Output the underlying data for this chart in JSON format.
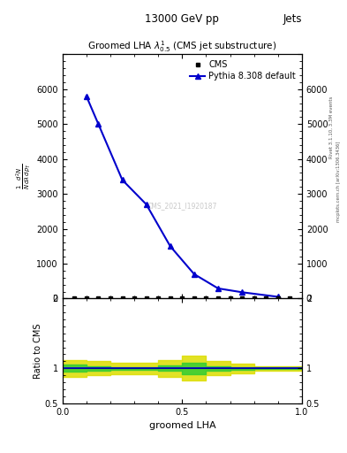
{
  "title": "13000 GeV pp",
  "jets_label": "Jets",
  "plot_title": "Groomed LHA $\\lambda^{1}_{0.5}$ (CMS jet substructure)",
  "xlabel": "groomed LHA",
  "ylabel_main": "$\\frac{1}{N}\\frac{d^{2}N}{d\\lambda\\,dp_{T}}$",
  "ylabel_ratio": "Ratio to CMS",
  "right_label_top": "Rivet 3.1.10, 3.3M events",
  "right_label_bot": "mcplots.cern.ch [arXiv:1306.3436]",
  "watermark": "CMS_2021_I1920187",
  "cms_x": [
    0.05,
    0.1,
    0.15,
    0.2,
    0.25,
    0.3,
    0.35,
    0.4,
    0.45,
    0.5,
    0.55,
    0.6,
    0.65,
    0.7,
    0.75,
    0.8,
    0.85,
    0.9,
    0.95
  ],
  "cms_y": [
    0,
    0,
    0,
    0,
    0,
    0,
    0,
    0,
    0,
    0,
    0,
    0,
    0,
    0,
    0,
    0,
    0,
    0,
    0
  ],
  "pythia_x": [
    0.1,
    0.15,
    0.25,
    0.35,
    0.45,
    0.55,
    0.65,
    0.75,
    0.9
  ],
  "pythia_y": [
    5800,
    5000,
    3400,
    2700,
    1500,
    700,
    290,
    180,
    50
  ],
  "pythia_label": "Pythia 8.308 default",
  "cms_label": "CMS",
  "ylim_main": [
    0,
    7000
  ],
  "ylim_ratio": [
    0.5,
    2.0
  ],
  "xlim": [
    0,
    1
  ],
  "ratio_band_green_lo": 0.95,
  "ratio_band_green_hi": 1.05,
  "ratio_band_yellow_lo": 0.88,
  "ratio_band_yellow_hi": 1.12,
  "main_color": "#0000cc",
  "cms_marker_color": "#000000",
  "green_band_color": "#33cc33",
  "yellow_band_color": "#dddd00",
  "background_color": "#ffffff",
  "yticks_main": [
    0,
    1000,
    2000,
    3000,
    4000,
    5000,
    6000,
    7000
  ],
  "ytick_labels_main": [
    "0",
    "1000",
    "2000",
    "3000",
    "4000",
    "5000",
    "6000",
    ""
  ],
  "ratio_x_band": [
    0.0,
    0.1,
    0.2,
    0.3,
    0.4,
    0.5,
    0.6,
    0.7,
    0.8,
    0.9,
    1.0
  ],
  "ratio_y_green_lo": [
    0.95,
    0.97,
    0.98,
    0.98,
    0.96,
    0.92,
    0.97,
    0.98,
    0.99,
    0.99,
    0.99
  ],
  "ratio_y_green_hi": [
    1.05,
    1.03,
    1.02,
    1.02,
    1.04,
    1.08,
    1.03,
    1.02,
    1.01,
    1.01,
    1.01
  ],
  "ratio_y_yellow_lo": [
    0.88,
    0.9,
    0.92,
    0.92,
    0.88,
    0.82,
    0.9,
    0.93,
    0.97,
    0.97,
    0.97
  ],
  "ratio_y_yellow_hi": [
    1.12,
    1.1,
    1.08,
    1.08,
    1.12,
    1.18,
    1.1,
    1.07,
    1.03,
    1.03,
    1.03
  ]
}
